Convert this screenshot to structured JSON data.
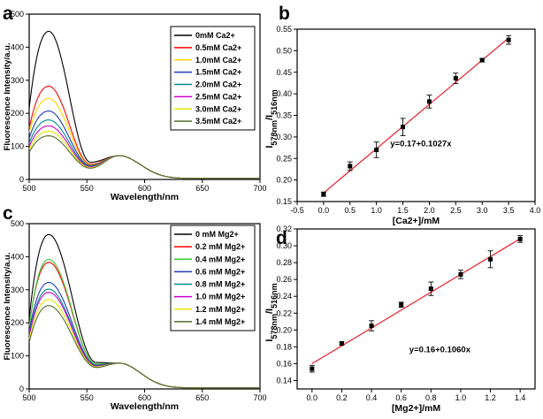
{
  "chart_data": [
    {
      "panel": "a",
      "type": "line",
      "xlabel": "Wavelength/nm",
      "ylabel": "Fluorescence Intensity/a.u.",
      "xlim": [
        500,
        700
      ],
      "ylim": [
        0,
        500
      ],
      "xticks": [
        500,
        550,
        600,
        650,
        700
      ],
      "yticks": [
        0,
        100,
        200,
        300,
        400,
        500
      ],
      "isosbestic": {
        "x": 573,
        "y": 72
      },
      "valley_x": 553,
      "series": [
        {
          "name": "0mM Ca2+",
          "color": "#000000",
          "start": 215,
          "peak": 448,
          "valley": 52,
          "tail": 3
        },
        {
          "name": "0.5mM Ca2+",
          "color": "#ff0000",
          "start": 155,
          "peak": 282,
          "valley": 46,
          "tail": 3
        },
        {
          "name": "1.0mM Ca2+",
          "color": "#ffd700",
          "start": 143,
          "peak": 245,
          "valley": 44,
          "tail": 3
        },
        {
          "name": "1.5mM Ca2+",
          "color": "#1f3cb4",
          "start": 125,
          "peak": 207,
          "valley": 42,
          "tail": 3
        },
        {
          "name": "2.0mM Ca2+",
          "color": "#008b8b",
          "start": 110,
          "peak": 180,
          "valley": 40,
          "tail": 3
        },
        {
          "name": "2.5mM Ca2+",
          "color": "#cc00cc",
          "start": 100,
          "peak": 162,
          "valley": 38,
          "tail": 3
        },
        {
          "name": "3.0mM Ca2+",
          "color": "#e6e600",
          "start": 90,
          "peak": 146,
          "valley": 36,
          "tail": 3
        },
        {
          "name": "3.5mM Ca2+",
          "color": "#556b2f",
          "start": 82,
          "peak": 132,
          "valley": 34,
          "tail": 3
        }
      ]
    },
    {
      "panel": "b",
      "type": "scatter",
      "xlabel": "[Ca2+]/mM",
      "ylabel_main": "I",
      "ylabel_sub": "578nm",
      "ylabel_mid": "/I",
      "ylabel_sub2": "516nm",
      "equation": "y=0.17+0.1027x",
      "xlim": [
        -0.5,
        4.0
      ],
      "ylim": [
        0.15,
        0.55
      ],
      "xticks": [
        "-0.5",
        "0.0",
        "0.5",
        "1.0",
        "1.5",
        "2.0",
        "2.5",
        "3.0",
        "3.5",
        "4.0"
      ],
      "yticks": [
        "0.15",
        "0.20",
        "0.25",
        "0.30",
        "0.35",
        "0.40",
        "0.45",
        "0.50",
        "0.55"
      ],
      "fit": {
        "intercept": 0.17,
        "slope": 0.1027,
        "x_range": [
          0,
          3.5
        ]
      },
      "points": [
        {
          "x": 0.0,
          "y": 0.167,
          "err": 0.005
        },
        {
          "x": 0.5,
          "y": 0.232,
          "err": 0.01
        },
        {
          "x": 1.0,
          "y": 0.27,
          "err": 0.018
        },
        {
          "x": 1.5,
          "y": 0.323,
          "err": 0.02
        },
        {
          "x": 2.0,
          "y": 0.382,
          "err": 0.015
        },
        {
          "x": 2.5,
          "y": 0.436,
          "err": 0.012
        },
        {
          "x": 3.0,
          "y": 0.478,
          "err": 0.004
        },
        {
          "x": 3.5,
          "y": 0.525,
          "err": 0.01
        }
      ]
    },
    {
      "panel": "c",
      "type": "line",
      "xlabel": "Wavelength/nm",
      "ylabel": "Fluorescence Intensity/a.u.",
      "xlim": [
        500,
        700
      ],
      "ylim": [
        0,
        500
      ],
      "xticks": [
        500,
        550,
        600,
        650,
        700
      ],
      "yticks": [
        0,
        100,
        200,
        300,
        400,
        500
      ],
      "isosbestic": {
        "x": 572,
        "y": 78
      },
      "valley_x": 558,
      "series": [
        {
          "name": "0 mM Mg2+",
          "color": "#000000",
          "start": 212,
          "peak": 467,
          "valley": 80,
          "tail": 3
        },
        {
          "name": "0.2 mM Mg2+",
          "color": "#ff0000",
          "start": 190,
          "peak": 383,
          "valley": 75,
          "tail": 3
        },
        {
          "name": "0.4 mM Mg2+",
          "color": "#33cc33",
          "start": 188,
          "peak": 392,
          "valley": 75,
          "tail": 3
        },
        {
          "name": "0.6 mM Mg2+",
          "color": "#1f3cb4",
          "start": 175,
          "peak": 322,
          "valley": 72,
          "tail": 3
        },
        {
          "name": "0.8 mM Mg2+",
          "color": "#008b8b",
          "start": 165,
          "peak": 302,
          "valley": 70,
          "tail": 3
        },
        {
          "name": "1.0 mM Mg2+",
          "color": "#cc00cc",
          "start": 160,
          "peak": 292,
          "valley": 69,
          "tail": 3
        },
        {
          "name": "1.2 mM Mg2+",
          "color": "#e6e600",
          "start": 150,
          "peak": 270,
          "valley": 67,
          "tail": 3
        },
        {
          "name": "1.4 mM Mg2+",
          "color": "#556b2f",
          "start": 140,
          "peak": 252,
          "valley": 65,
          "tail": 3
        }
      ]
    },
    {
      "panel": "d",
      "type": "scatter",
      "xlabel": "[Mg2+]/mM",
      "ylabel_main": "I",
      "ylabel_sub": "578nm",
      "ylabel_mid": "/I",
      "ylabel_sub2": "516nm",
      "equation": "y=0.16+0.1060x",
      "xlim": [
        -0.1,
        1.5
      ],
      "ylim": [
        0.13,
        0.32
      ],
      "xticks": [
        "0.0",
        "0.2",
        "0.4",
        "0.6",
        "0.8",
        "1.0",
        "1.2",
        "1.4"
      ],
      "yticks": [
        "0.14",
        "0.16",
        "0.18",
        "0.20",
        "0.22",
        "0.24",
        "0.26",
        "0.28",
        "0.30",
        "0.32"
      ],
      "fit": {
        "intercept": 0.16,
        "slope": 0.106,
        "x_range": [
          0,
          1.4
        ]
      },
      "points": [
        {
          "x": 0.0,
          "y": 0.154,
          "err": 0.004
        },
        {
          "x": 0.2,
          "y": 0.184,
          "err": 0.002
        },
        {
          "x": 0.4,
          "y": 0.205,
          "err": 0.006
        },
        {
          "x": 0.6,
          "y": 0.23,
          "err": 0.003
        },
        {
          "x": 0.8,
          "y": 0.249,
          "err": 0.008
        },
        {
          "x": 1.0,
          "y": 0.266,
          "err": 0.005
        },
        {
          "x": 1.2,
          "y": 0.284,
          "err": 0.01
        },
        {
          "x": 1.4,
          "y": 0.308,
          "err": 0.004
        }
      ]
    }
  ]
}
